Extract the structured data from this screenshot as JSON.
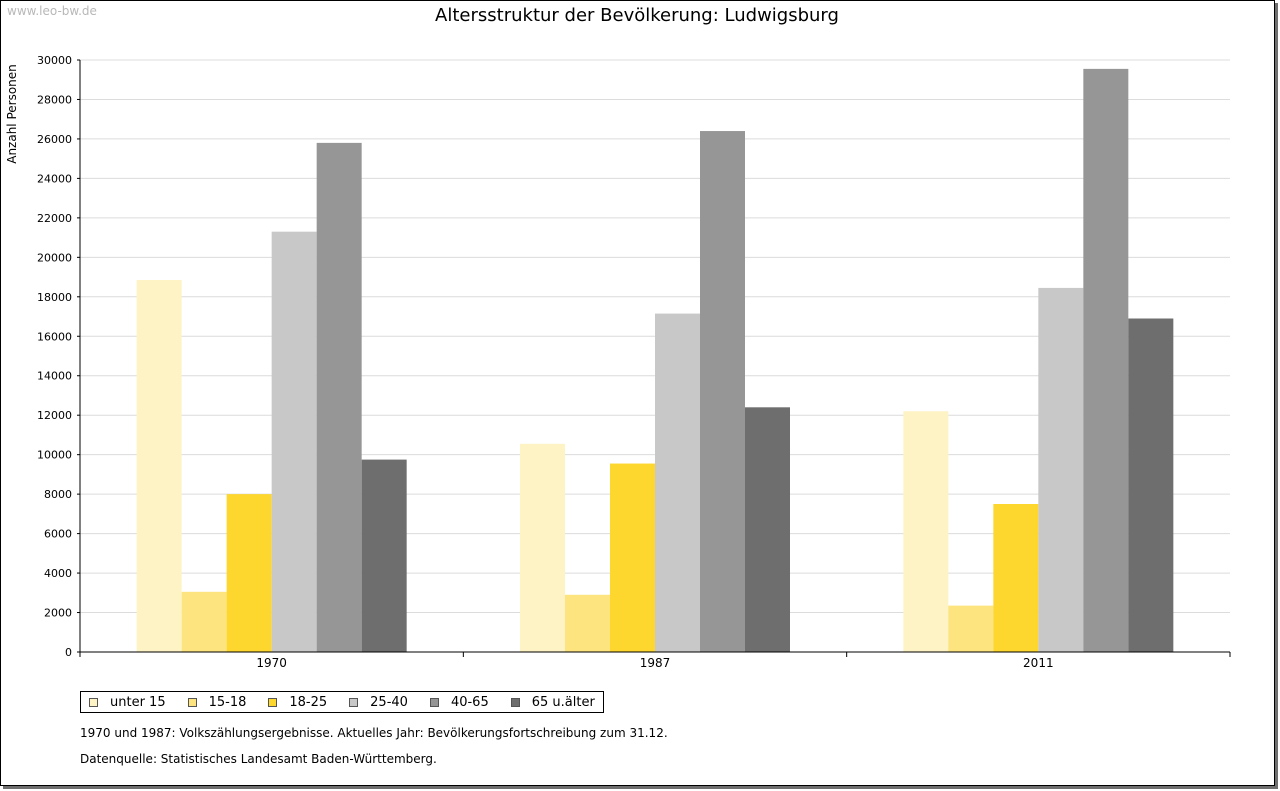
{
  "watermark": "www.leo-bw.de",
  "chart_data": {
    "type": "bar",
    "title": "Altersstruktur der Bevölkerung: Ludwigsburg",
    "xlabel": "",
    "ylabel": "Anzahl Personen",
    "ylim": [
      0,
      30000
    ],
    "ytick_step": 2000,
    "grid": true,
    "categories": [
      "1970",
      "1987",
      "2011"
    ],
    "series": [
      {
        "name": "unter 15",
        "color": "#fdf3c4",
        "values": [
          18850,
          10550,
          12200
        ]
      },
      {
        "name": "15-18",
        "color": "#fde47f",
        "values": [
          3050,
          2900,
          2350
        ]
      },
      {
        "name": "18-25",
        "color": "#fdd62e",
        "values": [
          8000,
          9550,
          7500
        ]
      },
      {
        "name": "25-40",
        "color": "#c8c8c8",
        "values": [
          21300,
          17150,
          18450
        ]
      },
      {
        "name": "40-65",
        "color": "#969696",
        "values": [
          25800,
          26400,
          29550
        ]
      },
      {
        "name": "65 u.älter",
        "color": "#6e6e6e",
        "values": [
          9750,
          12400,
          16900
        ]
      }
    ]
  },
  "notes": {
    "line1": "1970 und 1987: Volkszählungsergebnisse. Aktuelles Jahr: Bevölkerungsfortschreibung zum 31.12.",
    "line2": "Datenquelle: Statistisches Landesamt Baden-Württemberg."
  }
}
